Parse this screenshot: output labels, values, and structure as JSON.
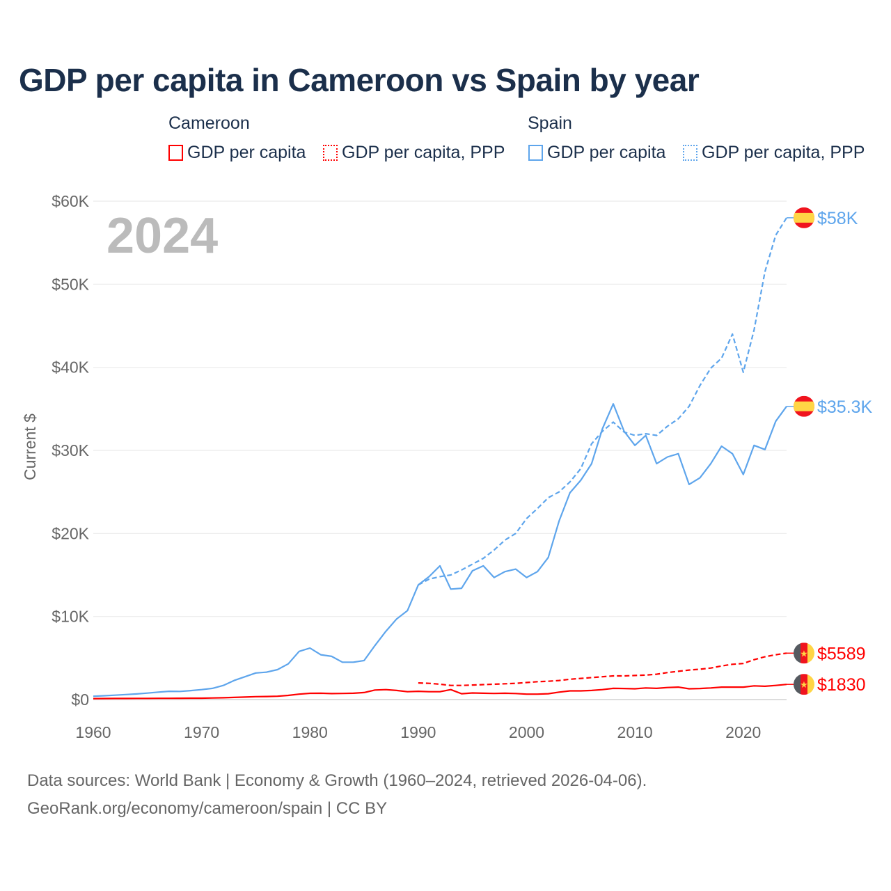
{
  "title": "GDP per capita in Cameroon vs Spain by year",
  "legend": {
    "groups": [
      {
        "name": "Cameroon",
        "items": [
          {
            "label": "GDP per capita",
            "style": "solid",
            "color": "#ff0000"
          },
          {
            "label": "GDP per capita, PPP",
            "style": "dotted",
            "color": "#ff0000"
          }
        ]
      },
      {
        "name": "Spain",
        "items": [
          {
            "label": "GDP per capita",
            "style": "solid",
            "color": "#5ea5ec"
          },
          {
            "label": "GDP per capita, PPP",
            "style": "dotted",
            "color": "#5ea5ec"
          }
        ]
      }
    ]
  },
  "year_watermark": "2024",
  "footer": {
    "line1": "Data sources: World Bank | Economy & Growth (1960–2024, retrieved 2026-04-06).",
    "line2": "GeoRank.org/economy/cameroon/spain | CC BY"
  },
  "chart_data": {
    "type": "line",
    "title": "GDP per capita in Cameroon vs Spain by year",
    "xlabel": "",
    "ylabel": "Current $",
    "xlim": [
      1960,
      2024
    ],
    "ylim": [
      0,
      60000
    ],
    "grid": true,
    "legend_placement": "top",
    "x_ticks": [
      1960,
      1970,
      1980,
      1990,
      2000,
      2010,
      2020
    ],
    "x_tick_labels": [
      "1960",
      "1970",
      "1980",
      "1990",
      "2000",
      "2010",
      "2020"
    ],
    "y_ticks": [
      0,
      10000,
      20000,
      30000,
      40000,
      50000,
      60000
    ],
    "y_tick_labels": [
      "$0",
      "$10K",
      "$20K",
      "$30K",
      "$40K",
      "$50K",
      "$60K"
    ],
    "series": [
      {
        "name": "Spain GDP per capita",
        "color": "#5ea5ec",
        "dash": "solid",
        "end_label": "$35.3K",
        "flag": "spain",
        "start_year": 1960,
        "values": [
          400,
          460,
          530,
          600,
          680,
          780,
          900,
          1000,
          980,
          1080,
          1200,
          1350,
          1700,
          2300,
          2750,
          3200,
          3300,
          3600,
          4300,
          5800,
          6200,
          5400,
          5200,
          4500,
          4500,
          4700,
          6500,
          8200,
          9700,
          10700,
          13800,
          14800,
          16100,
          13300,
          13400,
          15500,
          16100,
          14700,
          15400,
          15700,
          14700,
          15400,
          17100,
          21500,
          24900,
          26400,
          28400,
          32600,
          35600,
          32300,
          30600,
          31800,
          28400,
          29200,
          29600,
          25900,
          26700,
          28400,
          30500,
          29600,
          27100,
          30600,
          30100,
          33500,
          35300
        ]
      },
      {
        "name": "Spain GDP per capita, PPP",
        "color": "#5ea5ec",
        "dash": "dashed",
        "end_label": "$58K",
        "flag": "spain",
        "start_year": 1990,
        "values": [
          13800,
          14500,
          14800,
          15000,
          15600,
          16300,
          17000,
          18000,
          19200,
          20000,
          21800,
          23000,
          24300,
          25000,
          26200,
          27800,
          30800,
          32300,
          33400,
          32200,
          31800,
          32000,
          31800,
          32900,
          33800,
          35300,
          37800,
          39900,
          41100,
          44000,
          39400,
          44500,
          51500,
          55900,
          58000
        ]
      },
      {
        "name": "Cameroon GDP per capita",
        "color": "#ff0000",
        "dash": "solid",
        "end_label": "$1830",
        "flag": "cameroon",
        "start_year": 1960,
        "values": [
          120,
          125,
          130,
          135,
          140,
          145,
          150,
          155,
          160,
          165,
          170,
          190,
          220,
          260,
          300,
          350,
          370,
          400,
          500,
          650,
          750,
          760,
          720,
          740,
          760,
          850,
          1150,
          1200,
          1100,
          950,
          1000,
          950,
          950,
          1200,
          700,
          800,
          760,
          740,
          760,
          730,
          650,
          650,
          700,
          900,
          1050,
          1050,
          1100,
          1200,
          1350,
          1330,
          1300,
          1400,
          1350,
          1450,
          1500,
          1300,
          1330,
          1400,
          1500,
          1500,
          1500,
          1650,
          1600,
          1700,
          1830
        ]
      },
      {
        "name": "Cameroon GDP per capita, PPP",
        "color": "#ff0000",
        "dash": "dashed",
        "end_label": "$5589",
        "flag": "cameroon",
        "start_year": 1990,
        "values": [
          2000,
          1950,
          1850,
          1700,
          1700,
          1750,
          1800,
          1850,
          1900,
          1950,
          2050,
          2150,
          2200,
          2300,
          2450,
          2550,
          2650,
          2750,
          2850,
          2850,
          2900,
          2950,
          3050,
          3250,
          3400,
          3550,
          3650,
          3800,
          4050,
          4250,
          4350,
          4800,
          5150,
          5400,
          5589
        ]
      }
    ]
  }
}
